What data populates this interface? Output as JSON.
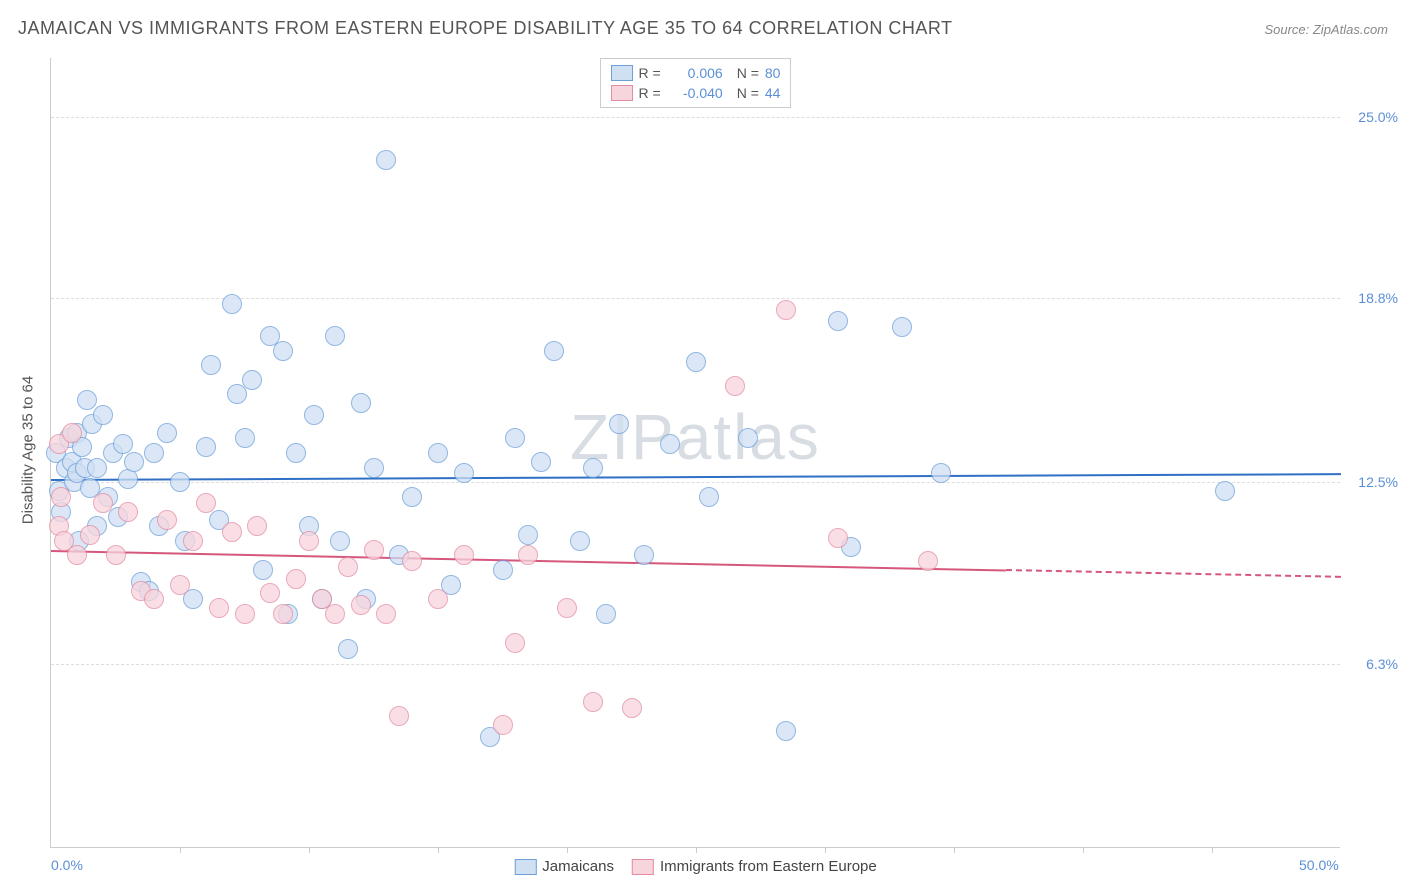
{
  "title": "JAMAICAN VS IMMIGRANTS FROM EASTERN EUROPE DISABILITY AGE 35 TO 64 CORRELATION CHART",
  "source": "Source: ZipAtlas.com",
  "watermark": "ZIPatlas",
  "y_axis_label": "Disability Age 35 to 64",
  "chart": {
    "type": "scatter",
    "xlim": [
      0,
      50
    ],
    "ylim": [
      0,
      27
    ],
    "x_ticks": [
      0,
      50
    ],
    "x_tick_labels": [
      "0.0%",
      "50.0%"
    ],
    "y_ticks": [
      6.3,
      12.5,
      18.8,
      25.0
    ],
    "y_tick_labels": [
      "6.3%",
      "12.5%",
      "18.8%",
      "25.0%"
    ],
    "minor_x_ticks": [
      5,
      10,
      15,
      20,
      25,
      30,
      35,
      40,
      45
    ],
    "background_color": "#ffffff",
    "grid_color": "#dddddd",
    "axis_color": "#cccccc",
    "label_color": "#5b8fd6",
    "series": [
      {
        "name": "Jamaicans",
        "fill": "#cfe0f3",
        "stroke": "#6d9fd9",
        "opacity": 0.75,
        "marker_radius": 10,
        "trend": {
          "y_at_x0": 12.6,
          "y_at_x50": 12.8,
          "solid_until_x": 50,
          "color": "#2f6fc4",
          "width": 2
        },
        "R": "0.006",
        "N": "80",
        "points": [
          [
            0.2,
            13.5
          ],
          [
            0.3,
            12.2
          ],
          [
            0.4,
            11.5
          ],
          [
            0.6,
            13.0
          ],
          [
            0.7,
            14.0
          ],
          [
            0.8,
            13.2
          ],
          [
            0.9,
            12.5
          ],
          [
            1.0,
            14.2
          ],
          [
            1.0,
            12.8
          ],
          [
            1.1,
            10.5
          ],
          [
            1.2,
            13.7
          ],
          [
            1.3,
            13.0
          ],
          [
            1.4,
            15.3
          ],
          [
            1.5,
            12.3
          ],
          [
            1.6,
            14.5
          ],
          [
            1.8,
            13.0
          ],
          [
            1.8,
            11.0
          ],
          [
            2.0,
            14.8
          ],
          [
            2.2,
            12.0
          ],
          [
            2.4,
            13.5
          ],
          [
            2.6,
            11.3
          ],
          [
            2.8,
            13.8
          ],
          [
            3.0,
            12.6
          ],
          [
            3.2,
            13.2
          ],
          [
            3.5,
            9.1
          ],
          [
            3.8,
            8.8
          ],
          [
            4.0,
            13.5
          ],
          [
            4.2,
            11.0
          ],
          [
            4.5,
            14.2
          ],
          [
            5.0,
            12.5
          ],
          [
            5.2,
            10.5
          ],
          [
            5.5,
            8.5
          ],
          [
            6.0,
            13.7
          ],
          [
            6.2,
            16.5
          ],
          [
            6.5,
            11.2
          ],
          [
            7.0,
            18.6
          ],
          [
            7.2,
            15.5
          ],
          [
            7.5,
            14.0
          ],
          [
            7.8,
            16.0
          ],
          [
            8.2,
            9.5
          ],
          [
            8.5,
            17.5
          ],
          [
            9.0,
            17.0
          ],
          [
            9.2,
            8.0
          ],
          [
            9.5,
            13.5
          ],
          [
            10.0,
            11.0
          ],
          [
            10.2,
            14.8
          ],
          [
            10.5,
            8.5
          ],
          [
            11.0,
            17.5
          ],
          [
            11.2,
            10.5
          ],
          [
            11.5,
            6.8
          ],
          [
            12.0,
            15.2
          ],
          [
            12.2,
            8.5
          ],
          [
            12.5,
            13.0
          ],
          [
            13.0,
            23.5
          ],
          [
            13.5,
            10.0
          ],
          [
            14.0,
            12.0
          ],
          [
            15.0,
            13.5
          ],
          [
            15.5,
            9.0
          ],
          [
            16.0,
            12.8
          ],
          [
            17.0,
            3.8
          ],
          [
            17.5,
            9.5
          ],
          [
            18.0,
            14.0
          ],
          [
            18.5,
            10.7
          ],
          [
            19.0,
            13.2
          ],
          [
            19.5,
            17.0
          ],
          [
            20.5,
            10.5
          ],
          [
            21.0,
            13.0
          ],
          [
            21.5,
            8.0
          ],
          [
            22.0,
            14.5
          ],
          [
            23.0,
            10.0
          ],
          [
            24.0,
            13.8
          ],
          [
            25.0,
            16.6
          ],
          [
            25.5,
            12.0
          ],
          [
            27.0,
            14.0
          ],
          [
            28.5,
            4.0
          ],
          [
            30.5,
            18.0
          ],
          [
            31.0,
            10.3
          ],
          [
            33.0,
            17.8
          ],
          [
            34.5,
            12.8
          ],
          [
            45.5,
            12.2
          ]
        ]
      },
      {
        "name": "Immigrants from Eastern Europe",
        "fill": "#f7d5dd",
        "stroke": "#e48ca2",
        "opacity": 0.75,
        "marker_radius": 10,
        "trend": {
          "y_at_x0": 10.2,
          "y_at_x50": 9.3,
          "solid_until_x": 37,
          "color": "#d6577c",
          "width": 2
        },
        "R": "-0.040",
        "N": "44",
        "points": [
          [
            0.3,
            11.0
          ],
          [
            0.3,
            13.8
          ],
          [
            0.4,
            12.0
          ],
          [
            0.5,
            10.5
          ],
          [
            0.8,
            14.2
          ],
          [
            1.0,
            10.0
          ],
          [
            1.5,
            10.7
          ],
          [
            2.0,
            11.8
          ],
          [
            2.5,
            10.0
          ],
          [
            3.0,
            11.5
          ],
          [
            3.5,
            8.8
          ],
          [
            4.0,
            8.5
          ],
          [
            4.5,
            11.2
          ],
          [
            5.0,
            9.0
          ],
          [
            5.5,
            10.5
          ],
          [
            6.0,
            11.8
          ],
          [
            6.5,
            8.2
          ],
          [
            7.0,
            10.8
          ],
          [
            7.5,
            8.0
          ],
          [
            8.0,
            11.0
          ],
          [
            8.5,
            8.7
          ],
          [
            9.0,
            8.0
          ],
          [
            9.5,
            9.2
          ],
          [
            10.0,
            10.5
          ],
          [
            10.5,
            8.5
          ],
          [
            11.0,
            8.0
          ],
          [
            11.5,
            9.6
          ],
          [
            12.0,
            8.3
          ],
          [
            12.5,
            10.2
          ],
          [
            13.0,
            8.0
          ],
          [
            13.5,
            4.5
          ],
          [
            14.0,
            9.8
          ],
          [
            15.0,
            8.5
          ],
          [
            16.0,
            10.0
          ],
          [
            17.5,
            4.2
          ],
          [
            18.0,
            7.0
          ],
          [
            18.5,
            10.0
          ],
          [
            20.0,
            8.2
          ],
          [
            21.0,
            5.0
          ],
          [
            22.5,
            4.8
          ],
          [
            26.5,
            15.8
          ],
          [
            28.5,
            18.4
          ],
          [
            30.5,
            10.6
          ],
          [
            34.0,
            9.8
          ]
        ]
      }
    ]
  },
  "legend_bottom": {
    "items": [
      {
        "label": "Jamaicans",
        "fill": "#cfe0f3",
        "stroke": "#6d9fd9"
      },
      {
        "label": "Immigrants from Eastern Europe",
        "fill": "#f7d5dd",
        "stroke": "#e48ca2"
      }
    ]
  }
}
